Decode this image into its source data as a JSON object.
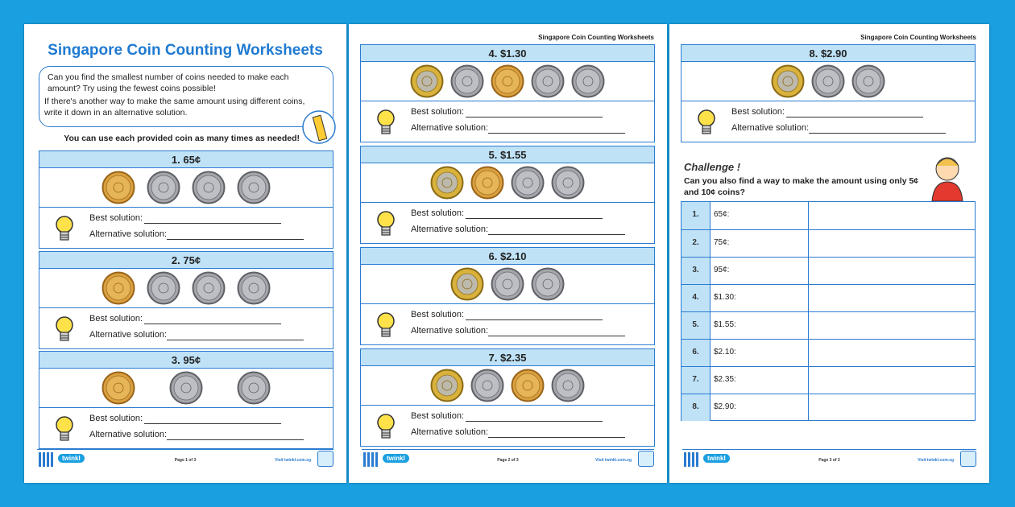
{
  "pages": [
    {
      "title": "Singapore Coin Counting Worksheets",
      "intro": [
        "Can you find the smallest number of coins needed to make each amount? Try using the fewest coins possible!",
        "If there's another way to make the same amount using different coins, write it down in an alternative solution."
      ],
      "note": "You can use each provided coin as many times as needed!",
      "problems": [
        {
          "heading": "1. 65¢",
          "best": "Best solution:",
          "alt": "Alternative solution:"
        },
        {
          "heading": "2. 75¢",
          "best": "Best solution:",
          "alt": "Alternative solution:"
        },
        {
          "heading": "3. 95¢",
          "best": "Best solution:",
          "alt": "Alternative solution:"
        }
      ],
      "footer": {
        "logo": "twinkl",
        "page": "Page 1 of 3",
        "url": "Visit twinkl.com.sg"
      }
    },
    {
      "header": "Singapore Coin Counting Worksheets",
      "problems": [
        {
          "heading": "4. $1.30",
          "best": "Best solution:",
          "alt": "Alternative solution:"
        },
        {
          "heading": "5. $1.55",
          "best": "Best solution:",
          "alt": "Alternative solution:"
        },
        {
          "heading": "6. $2.10",
          "best": "Best solution:",
          "alt": "Alternative solution:"
        },
        {
          "heading": "7. $2.35",
          "best": "Best solution:",
          "alt": "Alternative solution:"
        }
      ],
      "footer": {
        "logo": "twinkl",
        "page": "Page 2 of 3",
        "url": "Visit twinkl.com.sg"
      }
    },
    {
      "header": "Singapore Coin Counting Worksheets",
      "problems": [
        {
          "heading": "8. $2.90",
          "best": "Best solution:",
          "alt": "Alternative solution:"
        }
      ],
      "challenge": {
        "title": "Challenge !",
        "text": "Can you also find a way to make the amount using only 5¢ and 10¢ coins?",
        "rows": [
          [
            "1.",
            "65¢:"
          ],
          [
            "2.",
            "75¢:"
          ],
          [
            "3.",
            "95¢:"
          ],
          [
            "4.",
            "$1.30:"
          ],
          [
            "5.",
            "$1.55:"
          ],
          [
            "6.",
            "$2.10:"
          ],
          [
            "7.",
            "$2.35:"
          ],
          [
            "8.",
            "$2.90:"
          ]
        ]
      },
      "footer": {
        "logo": "twinkl",
        "page": "Page 3 of 3",
        "url": "Visit twinkl.com.sg"
      }
    }
  ]
}
